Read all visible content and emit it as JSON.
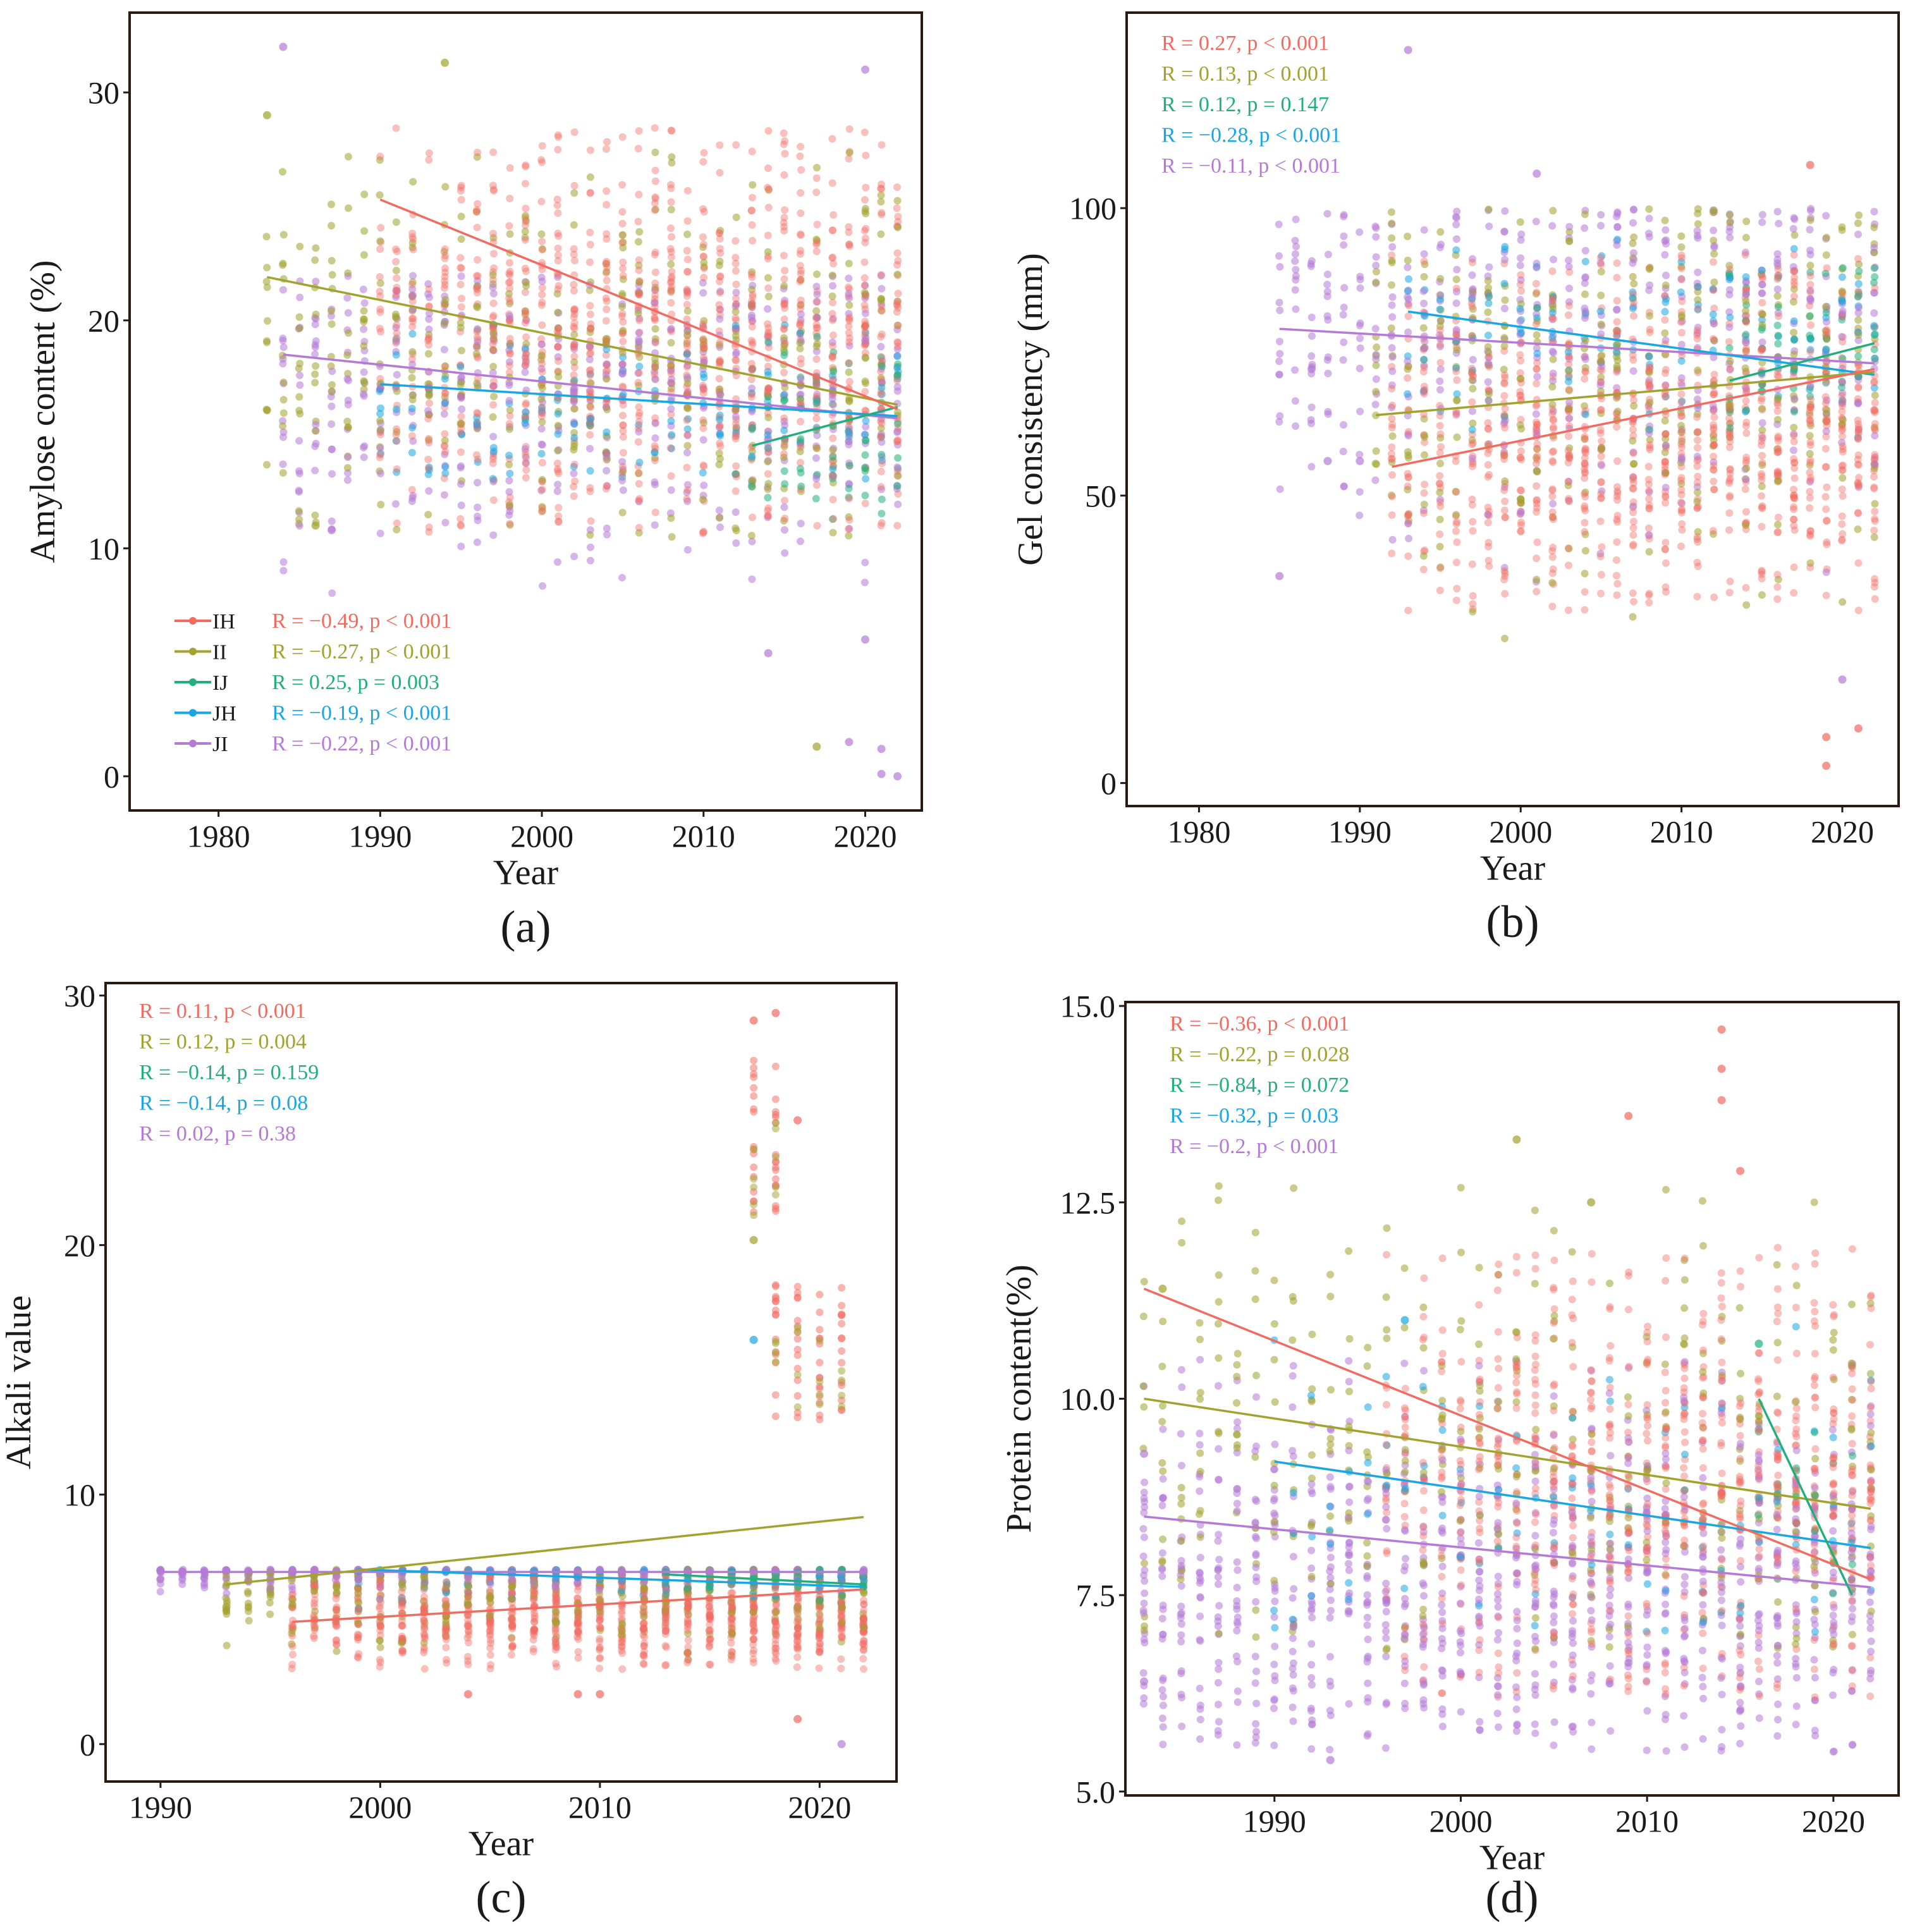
{
  "colors": {
    "IH": "#f16b61",
    "II": "#a1a32e",
    "IJ": "#21b07d",
    "JH": "#1aa6e1",
    "JI": "#b57ad6",
    "frame": "#2b1a12",
    "text": "#1a1a1a"
  },
  "chart_data": [
    {
      "type": "scatter",
      "panel_label": "(a)",
      "title": "",
      "xlabel": "Year",
      "ylabel": "Amylose content (%)",
      "xlim": [
        1974.5,
        2023.5
      ],
      "ylim": [
        -1.5,
        33.5
      ],
      "xticks": [
        1980,
        1990,
        2000,
        2010,
        2020
      ],
      "yticks": [
        0,
        10,
        20,
        30
      ],
      "legend": {
        "placement": "bottom-left",
        "items": [
          {
            "group": "IH",
            "label": "IH"
          },
          {
            "group": "II",
            "label": "II"
          },
          {
            "group": "IJ",
            "label": "IJ"
          },
          {
            "group": "JH",
            "label": "JH"
          },
          {
            "group": "JI",
            "label": "JI"
          }
        ]
      },
      "annotations": [
        {
          "group": "IH",
          "text": "R = −0.49, p < 0.001"
        },
        {
          "group": "II",
          "text": "R = −0.27, p < 0.001"
        },
        {
          "group": "IJ",
          "text": "R = 0.25, p = 0.003"
        },
        {
          "group": "JH",
          "text": "R = −0.19, p < 0.001"
        },
        {
          "group": "JI",
          "text": "R = −0.22, p < 0.001"
        }
      ],
      "series": [
        {
          "name": "IH",
          "x_range": [
            1990,
            2022
          ],
          "y_range": [
            10.5,
            28.5
          ],
          "center": 19.5,
          "density": 1.0,
          "trend": [
            [
              1990,
              25.3
            ],
            [
              2022,
              16.1
            ]
          ]
        },
        {
          "name": "II",
          "x_range": [
            1983,
            2022
          ],
          "y_range": [
            10.5,
            27.5
          ],
          "center": 18.5,
          "density": 0.35,
          "trend": [
            [
              1983,
              21.9
            ],
            [
              2022,
              16.3
            ]
          ]
        },
        {
          "name": "IJ",
          "x_range": [
            2013,
            2022
          ],
          "y_range": [
            11.0,
            21.0
          ],
          "center": 15.5,
          "density": 0.2,
          "trend": [
            [
              2013,
              14.5
            ],
            [
              2022,
              16.2
            ]
          ]
        },
        {
          "name": "JH",
          "x_range": [
            1990,
            2022
          ],
          "y_range": [
            13.0,
            20.0
          ],
          "center": 16.0,
          "density": 0.12,
          "trend": [
            [
              1990,
              17.2
            ],
            [
              2022,
              15.8
            ]
          ]
        },
        {
          "name": "JI",
          "x_range": [
            1984,
            2022
          ],
          "y_range": [
            8.0,
            22.0
          ],
          "center": 16.5,
          "density": 0.45,
          "trend": [
            [
              1984,
              18.5
            ],
            [
              2022,
              15.7
            ]
          ]
        }
      ],
      "extra_points": [
        {
          "group": "JI",
          "x": 1984,
          "y": 32.0
        },
        {
          "group": "II",
          "x": 1983,
          "y": 29.0
        },
        {
          "group": "II",
          "x": 1994,
          "y": 31.3
        },
        {
          "group": "JI",
          "x": 2020,
          "y": 31.0
        },
        {
          "group": "JI",
          "x": 2019,
          "y": 1.5
        },
        {
          "group": "JI",
          "x": 2021,
          "y": 1.2
        },
        {
          "group": "II",
          "x": 2017,
          "y": 1.3
        },
        {
          "group": "JI",
          "x": 2022,
          "y": 0.0
        },
        {
          "group": "JI",
          "x": 2021,
          "y": 0.1
        },
        {
          "group": "JI",
          "x": 2014,
          "y": 5.4
        },
        {
          "group": "JI",
          "x": 2020,
          "y": 6.0
        },
        {
          "group": "II",
          "x": 1986,
          "y": 11.0
        },
        {
          "group": "JI",
          "x": 1987,
          "y": 10.8
        }
      ]
    },
    {
      "type": "scatter",
      "panel_label": "(b)",
      "title": "",
      "xlabel": "Year",
      "ylabel": "Gel consistency (mm)",
      "xlim": [
        1975.5,
        2023.5
      ],
      "ylim": [
        -4,
        134
      ],
      "xticks": [
        1980,
        1990,
        2000,
        2010,
        2020
      ],
      "yticks": [
        0,
        50,
        100
      ],
      "annotations": [
        {
          "group": "IH",
          "text": "R = 0.27, p < 0.001"
        },
        {
          "group": "II",
          "text": "R = 0.13, p < 0.001"
        },
        {
          "group": "IJ",
          "text": "R = 0.12, p = 0.147"
        },
        {
          "group": "JH",
          "text": "R = −0.28, p < 0.001"
        },
        {
          "group": "JI",
          "text": "R = −0.11, p < 0.001"
        }
      ],
      "series": [
        {
          "name": "IH",
          "x_range": [
            1992,
            2022
          ],
          "y_range": [
            30,
            92
          ],
          "center": 60,
          "density": 1.0,
          "trend": [
            [
              1992,
              55.0
            ],
            [
              2022,
              72.0
            ]
          ]
        },
        {
          "name": "II",
          "x_range": [
            1991,
            2022
          ],
          "y_range": [
            25,
            100
          ],
          "center": 70,
          "density": 0.35,
          "trend": [
            [
              1991,
              64.0
            ],
            [
              2022,
              71.5
            ]
          ]
        },
        {
          "name": "IJ",
          "x_range": [
            2013,
            2022
          ],
          "y_range": [
            55,
            90
          ],
          "center": 75,
          "density": 0.2,
          "trend": [
            [
              2013,
              70.0
            ],
            [
              2022,
              76.5
            ]
          ]
        },
        {
          "name": "JH",
          "x_range": [
            1993,
            2022
          ],
          "y_range": [
            60,
            95
          ],
          "center": 78,
          "density": 0.12,
          "trend": [
            [
              1993,
              82.0
            ],
            [
              2022,
              71.0
            ]
          ]
        },
        {
          "name": "JI",
          "x_range": [
            1985,
            2022
          ],
          "y_range": [
            35,
            100
          ],
          "center": 80,
          "density": 0.45,
          "trend": [
            [
              1985,
              79.0
            ],
            [
              2022,
              73.0
            ]
          ]
        }
      ],
      "extra_points": [
        {
          "group": "JI",
          "x": 1993,
          "y": 127.5
        },
        {
          "group": "JI",
          "x": 2001,
          "y": 106.0
        },
        {
          "group": "IH",
          "x": 2018,
          "y": 107.5
        },
        {
          "group": "JI",
          "x": 2020,
          "y": 18.0
        },
        {
          "group": "IH",
          "x": 2019,
          "y": 8.0
        },
        {
          "group": "IH",
          "x": 2021,
          "y": 9.5
        },
        {
          "group": "IH",
          "x": 2019,
          "y": 3.0
        },
        {
          "group": "JI",
          "x": 1985,
          "y": 36.0
        },
        {
          "group": "JI",
          "x": 1988,
          "y": 56.0
        },
        {
          "group": "JI",
          "x": 1990,
          "y": 56.0
        },
        {
          "group": "JI",
          "x": 1987,
          "y": 72.0
        }
      ]
    },
    {
      "type": "scatter",
      "panel_label": "(c)",
      "title": "",
      "xlabel": "Year",
      "ylabel": "Alkali value",
      "xlim": [
        1987.5,
        2023.5
      ],
      "ylim": [
        -1.5,
        30.5
      ],
      "xticks": [
        1990,
        2000,
        2010,
        2020
      ],
      "yticks": [
        0,
        10,
        20,
        30
      ],
      "annotations": [
        {
          "group": "IH",
          "text": "R = 0.11, p < 0.001"
        },
        {
          "group": "II",
          "text": "R = 0.12, p = 0.004"
        },
        {
          "group": "IJ",
          "text": "R = −0.14, p = 0.159"
        },
        {
          "group": "JH",
          "text": "R = −0.14, p = 0.08"
        },
        {
          "group": "JI",
          "text": "R = 0.02, p = 0.38"
        }
      ],
      "series": [
        {
          "name": "IH",
          "x_range": [
            1996,
            2022
          ],
          "y_range": [
            3.0,
            7.0
          ],
          "center": 5.0,
          "density": 1.0,
          "trend": [
            [
              1996,
              4.9
            ],
            [
              2022,
              6.2
            ]
          ]
        },
        {
          "name": "II",
          "x_range": [
            1993,
            2022
          ],
          "y_range": [
            3.0,
            7.0
          ],
          "center": 6.0,
          "density": 0.35,
          "trend": [
            [
              1993,
              6.4
            ],
            [
              2022,
              9.1
            ]
          ]
        },
        {
          "name": "IJ",
          "x_range": [
            2013,
            2022
          ],
          "y_range": [
            5.0,
            7.0
          ],
          "center": 6.5,
          "density": 0.2,
          "trend": [
            [
              2013,
              6.8
            ],
            [
              2022,
              6.4
            ]
          ]
        },
        {
          "name": "JH",
          "x_range": [
            1999,
            2022
          ],
          "y_range": [
            5.0,
            7.0
          ],
          "center": 6.8,
          "density": 0.12,
          "trend": [
            [
              1999,
              7.0
            ],
            [
              2022,
              6.3
            ]
          ]
        },
        {
          "name": "JI",
          "x_range": [
            1990,
            2022
          ],
          "y_range": [
            5.5,
            7.0
          ],
          "center": 6.9,
          "density": 0.45,
          "trend": [
            [
              1990,
              6.9
            ],
            [
              2022,
              6.9
            ]
          ]
        }
      ],
      "extra_points": [
        {
          "group": "IH",
          "x": 2017,
          "y": 29.0
        },
        {
          "group": "IH",
          "x": 2018,
          "y": 29.3
        },
        {
          "group": "IH",
          "x": 2019,
          "y": 25.0
        },
        {
          "group": "II",
          "x": 2017,
          "y": 20.2
        },
        {
          "group": "JH",
          "x": 2017,
          "y": 16.2
        },
        {
          "group": "IH",
          "x": 2019,
          "y": 1.0
        },
        {
          "group": "JI",
          "x": 2021,
          "y": 0.0
        },
        {
          "group": "IH",
          "x": 2009,
          "y": 2.0
        },
        {
          "group": "IH",
          "x": 2010,
          "y": 2.0
        },
        {
          "group": "IH",
          "x": 2004,
          "y": 2.0
        },
        {
          "group": "II",
          "x": 1993,
          "y": 5.5
        }
      ],
      "clusters": [
        {
          "group": "IH",
          "x": [
            2017,
            2018
          ],
          "y_range": [
            21.0,
            27.5
          ],
          "count": 34
        },
        {
          "group": "II",
          "x": [
            2017,
            2018
          ],
          "y_range": [
            21.0,
            25.0
          ],
          "count": 10
        },
        {
          "group": "IH",
          "x": [
            2018,
            2019,
            2020,
            2021
          ],
          "y_range": [
            13.0,
            18.5
          ],
          "count": 60
        },
        {
          "group": "II",
          "x": [
            2018,
            2019,
            2020,
            2021
          ],
          "y_range": [
            13.0,
            17.0
          ],
          "count": 16
        }
      ]
    },
    {
      "type": "scatter",
      "panel_label": "(d)",
      "title": "",
      "xlabel": "Year",
      "ylabel": "Protein content(%)",
      "xlim": [
        1982.0,
        2023.5
      ],
      "ylim": [
        4.95,
        15.05
      ],
      "xticks": [
        1990,
        2000,
        2010,
        2020
      ],
      "yticks": [
        5.0,
        7.5,
        10.0,
        12.5,
        15.0
      ],
      "ytick_labels": [
        "5.0",
        "7.5",
        "10.0",
        "12.5",
        "15.0"
      ],
      "annotations": [
        {
          "group": "IH",
          "text": "R = −0.36, p < 0.001"
        },
        {
          "group": "II",
          "text": "R = −0.22, p = 0.028"
        },
        {
          "group": "IJ",
          "text": "R = −0.84, p = 0.072"
        },
        {
          "group": "JH",
          "text": "R = −0.32, p = 0.03"
        },
        {
          "group": "JI",
          "text": "R = −0.2, p < 0.001"
        }
      ],
      "series": [
        {
          "name": "IH",
          "x_range": [
            1996,
            2022
          ],
          "y_range": [
            6.2,
            12.0
          ],
          "center": 9.0,
          "density": 1.0,
          "trend": [
            [
              1983,
              11.4
            ],
            [
              2022,
              7.7
            ]
          ]
        },
        {
          "name": "II",
          "x_range": [
            1983,
            2022
          ],
          "y_range": [
            6.8,
            12.8
          ],
          "center": 9.2,
          "density": 0.3,
          "trend": [
            [
              1983,
              10.0
            ],
            [
              2022,
              8.6
            ]
          ]
        },
        {
          "name": "IJ",
          "x_range": [
            2016,
            2021
          ],
          "y_range": [
            7.5,
            10.7
          ],
          "center": 8.5,
          "density": 0.1,
          "trend": [
            [
              2016,
              10.0
            ],
            [
              2021,
              7.5
            ]
          ]
        },
        {
          "name": "JH",
          "x_range": [
            1990,
            2022
          ],
          "y_range": [
            7.0,
            11.0
          ],
          "center": 8.7,
          "density": 0.1,
          "trend": [
            [
              1990,
              9.2
            ],
            [
              2022,
              8.1
            ]
          ]
        },
        {
          "name": "JI",
          "x_range": [
            1983,
            2022
          ],
          "y_range": [
            5.5,
            10.5
          ],
          "center": 7.6,
          "density": 0.8,
          "trend": [
            [
              1983,
              8.5
            ],
            [
              2022,
              7.6
            ]
          ]
        }
      ],
      "extra_points": [
        {
          "group": "IH",
          "x": 2014,
          "y": 14.7
        },
        {
          "group": "IH",
          "x": 2014,
          "y": 14.2
        },
        {
          "group": "IH",
          "x": 2014,
          "y": 13.8
        },
        {
          "group": "IH",
          "x": 2009,
          "y": 13.6
        },
        {
          "group": "II",
          "x": 2003,
          "y": 13.3
        },
        {
          "group": "IH",
          "x": 2015,
          "y": 12.9
        },
        {
          "group": "II",
          "x": 1984,
          "y": 11.4
        },
        {
          "group": "JI",
          "x": 1983,
          "y": 9.3
        },
        {
          "group": "JI",
          "x": 1983,
          "y": 6.4
        },
        {
          "group": "JI",
          "x": 1993,
          "y": 5.4
        },
        {
          "group": "II",
          "x": 2007,
          "y": 12.5
        },
        {
          "group": "IJ",
          "x": 2016,
          "y": 10.7
        },
        {
          "group": "JH",
          "x": 1997,
          "y": 11.0
        }
      ]
    }
  ]
}
